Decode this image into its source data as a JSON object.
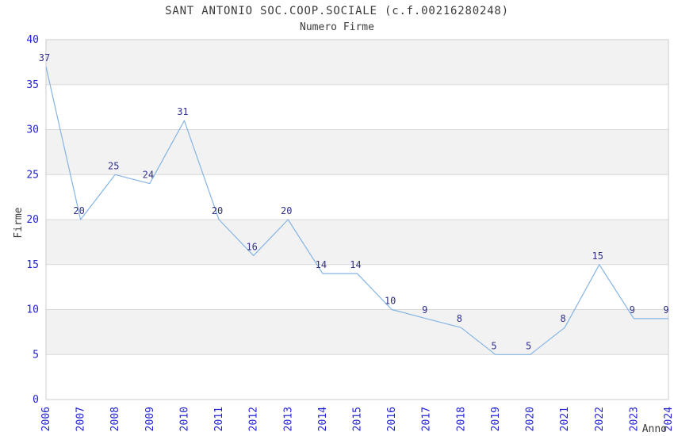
{
  "chart_data": {
    "type": "line",
    "title": "SANT ANTONIO SOC.COOP.SOCIALE (c.f.00216280248)",
    "subtitle": "Numero Firme",
    "xlabel": "Anno",
    "ylabel": "Firme",
    "categories": [
      "2006",
      "2007",
      "2008",
      "2009",
      "2010",
      "2011",
      "2012",
      "2013",
      "2014",
      "2015",
      "2016",
      "2017",
      "2018",
      "2019",
      "2020",
      "2021",
      "2022",
      "2023",
      "2024"
    ],
    "values": [
      37,
      20,
      25,
      24,
      31,
      20,
      16,
      20,
      14,
      14,
      10,
      9,
      8,
      5,
      5,
      8,
      15,
      9,
      9
    ],
    "ylim": [
      0,
      40
    ],
    "ytick_step": 5,
    "yticks": [
      0,
      5,
      10,
      15,
      20,
      25,
      30,
      35,
      40
    ],
    "grid": true,
    "legend": "none",
    "value_labels_shown": true,
    "colors": {
      "line": "#85b4e4",
      "value_label": "#31318c",
      "tick_label": "#2323d3",
      "title_text": "#3b3b3b",
      "band": "#f2f2f2",
      "gridline": "#d9d9d9",
      "plot_border": "#cccccc",
      "background": "#ffffff"
    }
  }
}
